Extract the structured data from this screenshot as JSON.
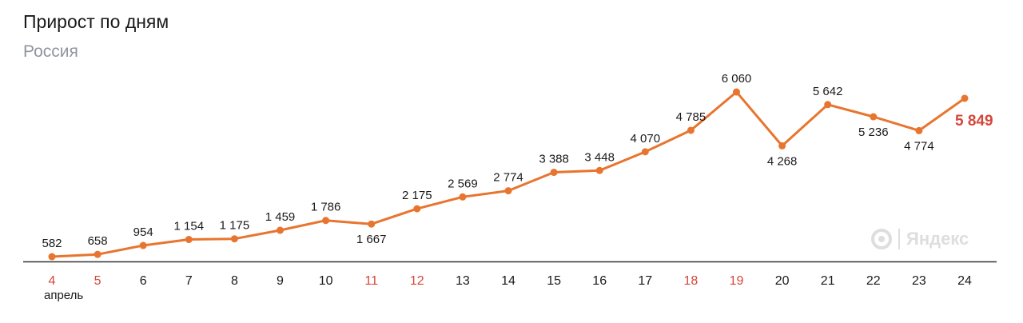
{
  "header": {
    "title": "Прирост по дням",
    "subtitle": "Россия"
  },
  "watermark": {
    "text": "Яндекс",
    "icon": "yandex-logo-icon"
  },
  "colors": {
    "line": "#e8752f",
    "axis": "#333333",
    "weekend": "#d5473a",
    "last_value": "#d5473a"
  },
  "chart_data": {
    "type": "line",
    "title": "Прирост по дням",
    "subtitle": "Россия",
    "month_label": "апрель",
    "x": [
      "4",
      "5",
      "6",
      "7",
      "8",
      "9",
      "10",
      "11",
      "12",
      "13",
      "14",
      "15",
      "16",
      "17",
      "18",
      "19",
      "20",
      "21",
      "22",
      "23",
      "24"
    ],
    "weekend": [
      true,
      true,
      false,
      false,
      false,
      false,
      false,
      true,
      true,
      false,
      false,
      false,
      false,
      false,
      true,
      true,
      false,
      false,
      false,
      false,
      false
    ],
    "values": [
      582,
      658,
      954,
      1154,
      1175,
      1459,
      1786,
      1667,
      2175,
      2569,
      2774,
      3388,
      3448,
      4070,
      4785,
      6060,
      4268,
      5642,
      5236,
      4774,
      5849
    ],
    "value_labels": [
      "582",
      "658",
      "954",
      "1 154",
      "1 175",
      "1 459",
      "1 786",
      "1 667",
      "2 175",
      "2 569",
      "2 774",
      "3 388",
      "3 448",
      "4 070",
      "4 785",
      "6 060",
      "4 268",
      "5 642",
      "5 236",
      "4 774",
      "5 849"
    ],
    "label_below": [
      false,
      false,
      false,
      false,
      false,
      false,
      false,
      true,
      false,
      false,
      false,
      false,
      false,
      false,
      false,
      false,
      true,
      false,
      true,
      true,
      false
    ],
    "grid": false,
    "legend": "none"
  }
}
